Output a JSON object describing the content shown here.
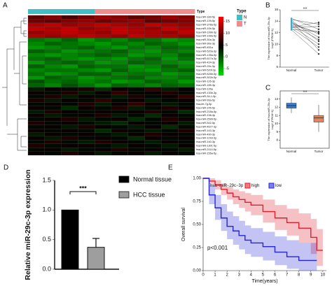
{
  "chart_data": [
    {
      "type": "heatmap",
      "panel": "A",
      "annotation_label": "Type",
      "legend_title": "Type",
      "groups": [
        {
          "name": "N",
          "color": "#3fbfc6"
        },
        {
          "name": "T",
          "color": "#f08c8c"
        }
      ],
      "columns": [
        0,
        0,
        0,
        0,
        1,
        1,
        1,
        1,
        1,
        1
      ],
      "colorbar": {
        "lim": [
          -8,
          17
        ],
        "ticks": [
          15,
          10,
          5,
          0,
          -5
        ],
        "colors": [
          "#00e000",
          "#000000",
          "#ff0000"
        ]
      },
      "rows": [
        "hsa-miR-183-5p",
        "hsa-miR-139-5p",
        "hsa-miR-378a-5p",
        "hsa-miR-10b-5p",
        "hsa-miR-199b-3p",
        "hsa-miR-199a-5p",
        "hsa-miR-30a-3p",
        "hsa-miR-30e-3p",
        "hsa-miR-451a",
        "hsa-miR-520a-3p",
        "hsa-miR-135a-5p",
        "hsa-miR-617a-3p",
        "hsa-miR-424-3p",
        "hsa-miR-29c-3p",
        "hsa-miR-520f-3p",
        "hsa-miR-526b-5p",
        "hsa-miR-302b-5p",
        "hsa-miR-126-3p",
        "hsa-miR-185-3p",
        "hsa-miR-126a",
        "hsa-miR-130b-3p",
        "hsa-miR-34-1-5p",
        "hsa-miR-99a-5p",
        "hsa-let-7g-3p",
        "hsa-miR-145-5p",
        "hsa-miR-218a-5p",
        "hsa-miR-136-3p",
        "hsa-miR-2599-5p",
        "hsa-miR-542-5p",
        "hsa-miR-4677-3p",
        "hsa-miR-143-3p",
        "hsa-miR-490-3p",
        "hsa-miR-1293-3p",
        "hsa-miR-140-3p",
        "hsa-miR-1301-5p",
        "hsa-miR-2114-5p",
        "hsa-miR-155a-5p"
      ],
      "values": [
        [
          9,
          11,
          8,
          10,
          12,
          11,
          9,
          10,
          12,
          11
        ],
        [
          10,
          9,
          11,
          12,
          10,
          11,
          12,
          9,
          10,
          11
        ],
        [
          13,
          14,
          12,
          13,
          14,
          13,
          12,
          14,
          13,
          12
        ],
        [
          14,
          13,
          14,
          12,
          13,
          14,
          13,
          12,
          14,
          13
        ],
        [
          12,
          13,
          14,
          13,
          12,
          14,
          13,
          13,
          12,
          14
        ],
        [
          13,
          12,
          13,
          14,
          13,
          12,
          14,
          13,
          13,
          12
        ],
        [
          -2,
          -3,
          -1,
          -4,
          -2,
          -3,
          -1,
          -2,
          -4,
          -3
        ],
        [
          -3,
          -1,
          -2,
          -3,
          -4,
          -2,
          -3,
          -1,
          -2,
          -4
        ],
        [
          -4,
          -3,
          -2,
          -1,
          -3,
          -4,
          -2,
          -3,
          -1,
          -2
        ],
        [
          -1,
          -2,
          -4,
          -3,
          -2,
          -1,
          -3,
          -4,
          -2,
          -3
        ],
        [
          -3,
          -4,
          -3,
          -2,
          -1,
          -2,
          -4,
          -3,
          -3,
          -1
        ],
        [
          -2,
          -1,
          -3,
          -4,
          -3,
          -4,
          -2,
          -1,
          -4,
          -2
        ],
        [
          -4,
          -2,
          -1,
          -2,
          -4,
          -3,
          -1,
          -2,
          -3,
          -4
        ],
        [
          -1,
          -3,
          -4,
          -1,
          -2,
          -2,
          -4,
          -3,
          -1,
          -3
        ],
        [
          -3,
          -2,
          -2,
          -3,
          -4,
          -1,
          -3,
          -4,
          -2,
          -1
        ],
        [
          -2,
          -4,
          -3,
          -1,
          -1,
          -3,
          -2,
          -2,
          -4,
          -3
        ],
        [
          -4,
          -1,
          -2,
          -4,
          -3,
          -2,
          -1,
          -3,
          -3,
          -2
        ],
        [
          0,
          -2,
          -1,
          -3,
          -2,
          -4,
          -3,
          -1,
          -2,
          -4
        ],
        [
          -1,
          -3,
          0,
          -2,
          -4,
          -1,
          -2,
          -3,
          -1,
          -2
        ],
        [
          3,
          5,
          4,
          6,
          2,
          5,
          4,
          7,
          3,
          5
        ],
        [
          5,
          4,
          6,
          3,
          5,
          7,
          4,
          5,
          6,
          4
        ],
        [
          4,
          6,
          3,
          5,
          4,
          3,
          6,
          4,
          5,
          7
        ],
        [
          6,
          3,
          5,
          4,
          7,
          4,
          5,
          3,
          4,
          5
        ],
        [
          4,
          5,
          4,
          6,
          3,
          5,
          7,
          5,
          3,
          4
        ],
        [
          5,
          4,
          2,
          5,
          4,
          6,
          3,
          4,
          6,
          5
        ],
        [
          3,
          6,
          5,
          4,
          5,
          4,
          5,
          6,
          4,
          2
        ],
        [
          5,
          3,
          4,
          5,
          6,
          3,
          4,
          2,
          5,
          4
        ],
        [
          4,
          5,
          6,
          3,
          4,
          5,
          2,
          4,
          6,
          5
        ],
        [
          6,
          4,
          5,
          4,
          3,
          2,
          5,
          4,
          5,
          3
        ],
        [
          4,
          5,
          3,
          6,
          5,
          4,
          3,
          5,
          2,
          4
        ],
        [
          5,
          4,
          5,
          4,
          2,
          5,
          4,
          3,
          4,
          6
        ],
        [
          3,
          5,
          4,
          5,
          4,
          3,
          5,
          6,
          5,
          4
        ],
        [
          5,
          3,
          6,
          4,
          5,
          4,
          2,
          5,
          4,
          5
        ],
        [
          4,
          6,
          4,
          3,
          6,
          5,
          4,
          3,
          5,
          4
        ],
        [
          6,
          4,
          5,
          5,
          4,
          3,
          5,
          4,
          3,
          5
        ],
        [
          4,
          5,
          3,
          4,
          5,
          6,
          4,
          5,
          4,
          3
        ],
        [
          5,
          4,
          6,
          5,
          3,
          4,
          5,
          3,
          5,
          4
        ]
      ]
    },
    {
      "type": "paired",
      "panel": "B",
      "ylabel": [
        "The expression of hsa-miR-29c-3p",
        "Log2 (FPKM+1)"
      ],
      "annotation": "***",
      "categories": [
        "Normal",
        "Tumor"
      ],
      "colors": [
        "#2fb0e0",
        "#333333"
      ],
      "ylim": [
        6,
        16
      ],
      "yticks": [
        6,
        8,
        10,
        12,
        14,
        16
      ],
      "pairs": [
        [
          13.5,
          12.0
        ],
        [
          14.2,
          10.5
        ],
        [
          13.0,
          13.8
        ],
        [
          12.8,
          9.5
        ],
        [
          13.9,
          11.2
        ],
        [
          12.5,
          8.3
        ],
        [
          14.5,
          12.6
        ],
        [
          13.2,
          10.0
        ],
        [
          12.9,
          13.1
        ],
        [
          13.7,
          11.8
        ],
        [
          14.0,
          9.0
        ],
        [
          12.6,
          12.2
        ],
        [
          13.4,
          10.8
        ],
        [
          14.3,
          13.5
        ]
      ]
    },
    {
      "type": "box",
      "panel": "C",
      "ylabel": [
        "The expression of hsa-miR-29c-3p",
        "Log2 (FPKM+1)"
      ],
      "annotation": "***",
      "categories": [
        "Normal",
        "Tumor"
      ],
      "ylim": [
        7,
        14
      ],
      "yticks": [
        8,
        9,
        10,
        11,
        12,
        13
      ],
      "boxes": [
        {
          "min": 11.3,
          "q1": 11.9,
          "median": 12.2,
          "q3": 12.5,
          "max": 13.2,
          "color": "#3a7bd5"
        },
        {
          "min": 9.0,
          "q1": 10.2,
          "median": 10.7,
          "q3": 11.0,
          "max": 12.3,
          "color": "#e8845b"
        }
      ]
    },
    {
      "type": "bar",
      "panel": "D",
      "ylabel": "Relative miR-29c-3p expression",
      "annotation": "***",
      "categories": [
        "Normal tissue",
        "HCC tissue"
      ],
      "values": [
        1.0,
        0.37
      ],
      "errors": [
        null,
        0.15
      ],
      "colors": [
        "#000000",
        "#9e9e9e"
      ],
      "ylim": [
        0,
        1.5
      ],
      "yticks": [
        {
          "value": 0,
          "label": "0.0"
        },
        {
          "value": 0.5,
          "label": "0.5"
        },
        {
          "value": 1,
          "label": "1.0"
        },
        {
          "value": 1.5,
          "label": "1.5"
        }
      ]
    },
    {
      "type": "km",
      "panel": "E",
      "xlabel": "Time(years)",
      "ylabel": "Overall survival",
      "legend_title": "hsa−miR−29c−3p",
      "annotation": "p<0.001",
      "xlim": [
        0,
        10.3
      ],
      "xticks": [
        0,
        1,
        2,
        3,
        4,
        5,
        6,
        7,
        8,
        9,
        10
      ],
      "ylim": [
        0,
        1
      ],
      "yticks": [
        {
          "value": 0,
          "label": "0.00"
        },
        {
          "value": 0.25,
          "label": "0.25"
        },
        {
          "value": 0.5,
          "label": "0.50"
        },
        {
          "value": 0.75,
          "label": "0.75"
        },
        {
          "value": 1,
          "label": "1.00"
        }
      ],
      "x": [
        0,
        0.5,
        1,
        1.5,
        2,
        2.5,
        3,
        3.5,
        4,
        5,
        6,
        7,
        8,
        9,
        9.5,
        10
      ],
      "series": [
        {
          "name": "high",
          "color": "#e0202e",
          "values": [
            1,
            0.97,
            0.93,
            0.88,
            0.84,
            0.8,
            0.77,
            0.74,
            0.71,
            0.64,
            0.57,
            0.52,
            0.46,
            0.36,
            0.22,
            0.22
          ],
          "lower": [
            1,
            0.94,
            0.88,
            0.82,
            0.77,
            0.72,
            0.68,
            0.64,
            0.6,
            0.52,
            0.44,
            0.38,
            0.3,
            0.18,
            0.05,
            0.05
          ],
          "upper": [
            1,
            1,
            0.98,
            0.94,
            0.91,
            0.88,
            0.86,
            0.84,
            0.82,
            0.77,
            0.71,
            0.67,
            0.62,
            0.56,
            0.45,
            0.45
          ]
        },
        {
          "name": "low",
          "color": "#2626d6",
          "values": [
            1,
            0.82,
            0.68,
            0.57,
            0.48,
            0.43,
            0.38,
            0.33,
            0.3,
            0.26,
            0.2,
            0.15,
            0.11,
            0.11,
            0.11,
            null
          ],
          "lower": [
            1,
            0.72,
            0.55,
            0.43,
            0.34,
            0.28,
            0.23,
            0.18,
            0.15,
            0.11,
            0.06,
            0.02,
            0,
            0,
            0,
            null
          ],
          "upper": [
            1,
            0.93,
            0.82,
            0.72,
            0.64,
            0.59,
            0.54,
            0.49,
            0.46,
            0.42,
            0.37,
            0.33,
            0.3,
            0.3,
            0.3,
            null
          ]
        }
      ]
    }
  ]
}
